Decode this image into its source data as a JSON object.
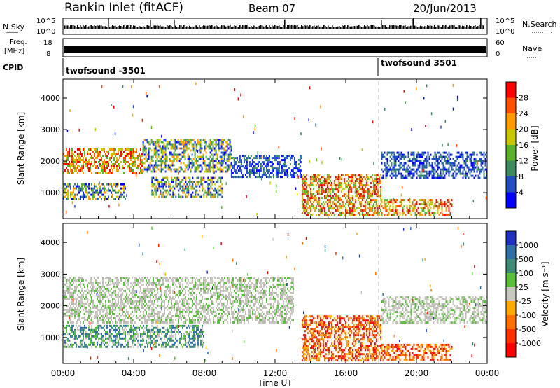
{
  "header": {
    "station": "Rankin Inlet (fitACF)",
    "beam": "Beam 07",
    "date": "20/Jun/2013"
  },
  "nsky_panel": {
    "left_label": "N.Sky",
    "right_label": "N.Search",
    "left_ticks": [
      "10^5",
      "10^0"
    ],
    "right_ticks": [
      "10^5",
      "10^0"
    ]
  },
  "freq_panel": {
    "left_label_line1": "Freq.",
    "left_label_line2": "[MHz]",
    "right_label": "Nave",
    "left_ticks": [
      "18",
      "8"
    ],
    "right_ticks": [
      "60",
      "0"
    ]
  },
  "cpid_panel": {
    "label": "CPID",
    "entries": [
      "twofsound -3501",
      "twofsound 3501"
    ],
    "switch_time_hours": 18.0
  },
  "colors": {
    "power_scale": [
      "#0000ff",
      "#2050c0",
      "#3c8c60",
      "#59b32a",
      "#c8c800",
      "#ff9900",
      "#ff5000",
      "#ff0000"
    ],
    "velocity_scale": [
      "#2030c0",
      "#2f6fa8",
      "#3c8c78",
      "#59c03a",
      "#c8c8c0",
      "#ffaa00",
      "#ff7000",
      "#ff3000",
      "#ff0000"
    ]
  },
  "chart_data": [
    {
      "type": "heatmap",
      "title": "Power",
      "xlabel": "Time UT",
      "ylabel": "Slant Range [km]",
      "x_ticks": [
        "00:00",
        "04:00",
        "08:00",
        "12:00",
        "16:00",
        "20:00",
        "00:00"
      ],
      "x_range_hours": [
        0,
        24
      ],
      "y_ticks": [
        1000,
        2000,
        3000,
        4000
      ],
      "y_range_km": [
        180,
        4600
      ],
      "colorbar_label": "Power [dB]",
      "colorbar_ticks": [
        4,
        8,
        12,
        16,
        20,
        24,
        28
      ],
      "colorbar_range": [
        0,
        32
      ],
      "echo_bands": [
        {
          "t0": 0,
          "t1": 4.5,
          "r0": 1650,
          "r1": 2400,
          "level": "orange"
        },
        {
          "t0": 4.5,
          "t1": 9.5,
          "r0": 1700,
          "r1": 2700,
          "level": "mixed"
        },
        {
          "t0": 9.5,
          "t1": 13.5,
          "r0": 1500,
          "r1": 2200,
          "level": "weak"
        },
        {
          "t0": 0,
          "t1": 3.5,
          "r0": 800,
          "r1": 1300,
          "level": "mixed"
        },
        {
          "t0": 5,
          "t1": 9,
          "r0": 900,
          "r1": 1500,
          "level": "mixed"
        },
        {
          "t0": 13.5,
          "t1": 18,
          "r0": 300,
          "r1": 1600,
          "level": "strong"
        },
        {
          "t0": 18,
          "t1": 22,
          "r0": 300,
          "r1": 800,
          "level": "strong"
        },
        {
          "t0": 18,
          "t1": 24,
          "r0": 1500,
          "r1": 2300,
          "level": "weak"
        }
      ]
    },
    {
      "type": "heatmap",
      "title": "Velocity",
      "xlabel": "Time UT",
      "ylabel": "Slant Range [km]",
      "x_ticks": [
        "00:00",
        "04:00",
        "08:00",
        "12:00",
        "16:00",
        "20:00",
        "00:00"
      ],
      "x_range_hours": [
        0,
        24
      ],
      "y_ticks": [
        1000,
        2000,
        3000,
        4000
      ],
      "y_range_km": [
        180,
        4600
      ],
      "colorbar_label": "Velocity [m s⁻¹]",
      "colorbar_ticks": [
        "1000",
        "500",
        "100",
        "25",
        "-25",
        "-100",
        "-500",
        "-1000"
      ],
      "echo_bands": [
        {
          "t0": 0,
          "t1": 13,
          "r0": 1500,
          "r1": 2900,
          "level": "grey"
        },
        {
          "t0": 0,
          "t1": 8,
          "r0": 700,
          "r1": 1400,
          "level": "green"
        },
        {
          "t0": 13.5,
          "t1": 18,
          "r0": 300,
          "r1": 1700,
          "level": "orange"
        },
        {
          "t0": 18,
          "t1": 22,
          "r0": 300,
          "r1": 800,
          "level": "orange"
        },
        {
          "t0": 18,
          "t1": 24,
          "r0": 1500,
          "r1": 2300,
          "level": "grey"
        }
      ]
    }
  ]
}
